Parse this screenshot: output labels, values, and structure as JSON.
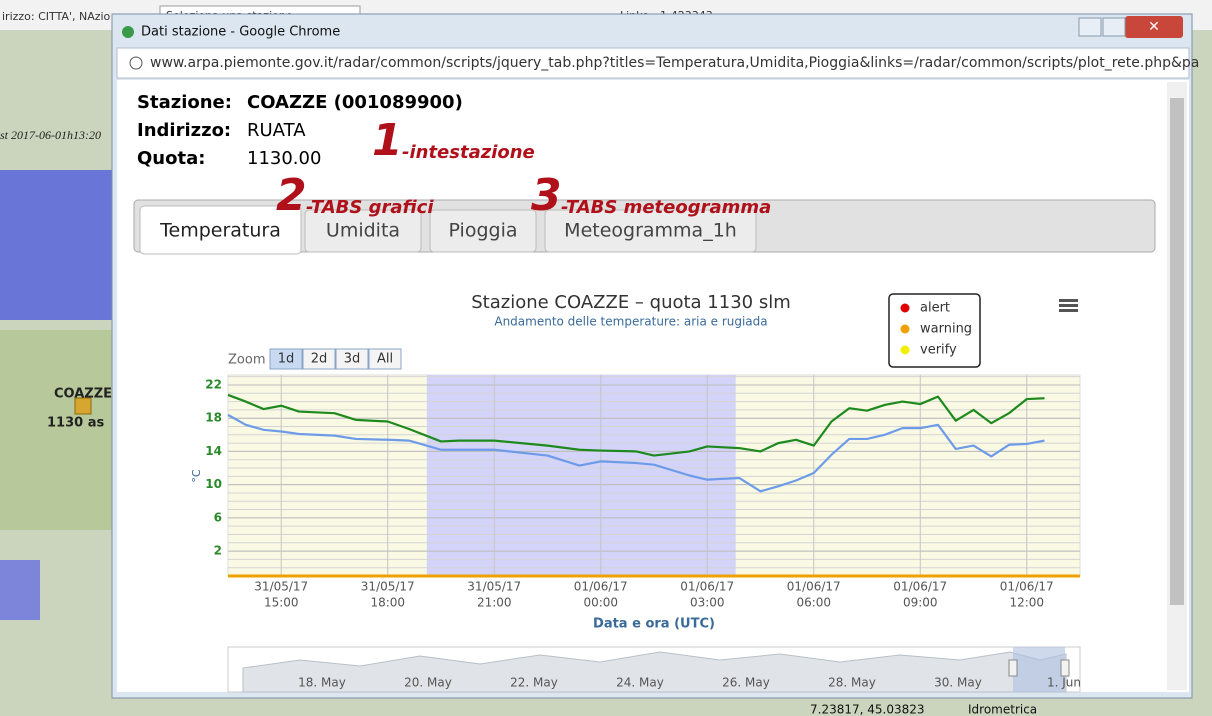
{
  "background": {
    "search_label": "irizzo: CITTA', NAzio",
    "station_select": "Seleziona una stazione",
    "links": "Links",
    "scale": "1:423343",
    "timestamp": "st 2017-06-01h13:20",
    "map_station": "COAZZE",
    "map_altitude": "1130 as",
    "coords": "7.23817, 45.03823",
    "legend_item": "Idrometrica"
  },
  "window": {
    "title": "Dati stazione - Google Chrome",
    "url": "www.arpa.piemonte.gov.it/radar/common/scripts/jquery_tab.php?titles=Temperatura,Umidita,Pioggia&links=/radar/common/scripts/plot_rete.php&pa"
  },
  "header": {
    "station_label": "Stazione:",
    "station": "COAZZE (001089900)",
    "address_label": "Indirizzo:",
    "address": "RUATA",
    "altitude_label": "Quota:",
    "altitude": "1130.00"
  },
  "annotations": [
    {
      "number": "1",
      "text": "-intestazione"
    },
    {
      "number": "2",
      "text": "-TABS grafici"
    },
    {
      "number": "3",
      "text": "-TABS meteogramma"
    }
  ],
  "tabs": {
    "items": [
      "Temperatura",
      "Umidita",
      "Pioggia",
      "Meteogramma_1h"
    ],
    "active": 0
  },
  "chart_data": {
    "type": "line",
    "title": "Stazione COAZZE – quota 1130 slm",
    "subtitle": "Andamento delle temperature: aria e rugiada",
    "y_label": "°C",
    "x_label": "Data e ora (UTC)",
    "zoom": {
      "label": "Zoom",
      "buttons": [
        "1d",
        "2d",
        "3d",
        "All"
      ],
      "active": 0
    },
    "legend": {
      "position": "top-right",
      "items": [
        {
          "name": "alert",
          "color": "#e00000"
        },
        {
          "name": "warning",
          "color": "#f0a000"
        },
        {
          "name": "verify",
          "color": "#f0f000"
        }
      ]
    },
    "x": [
      13.5,
      14,
      14.5,
      15,
      15.5,
      16.5,
      17.1,
      18,
      18.6,
      19.5,
      20,
      21,
      22.5,
      23.4,
      24,
      25,
      25.5,
      26.5,
      27,
      27.9,
      28.5,
      29,
      29.5,
      30,
      30.5,
      31,
      31.5,
      32,
      32.5,
      33,
      33.5,
      34,
      34.5,
      35,
      35.5,
      36,
      36.5
    ],
    "series": [
      {
        "color": "#1e8a1e",
        "values": [
          20.8,
          20.0,
          19.1,
          19.5,
          18.8,
          18.6,
          17.8,
          17.6,
          16.7,
          15.2,
          15.3,
          15.3,
          14.7,
          14.2,
          14.1,
          14.0,
          13.5,
          14.0,
          14.6,
          14.4,
          14.0,
          15.0,
          15.4,
          14.7,
          17.6,
          19.2,
          18.9,
          19.6,
          20.0,
          19.7,
          20.6,
          17.7,
          19.0,
          17.4,
          18.6,
          20.3,
          20.4
        ]
      },
      {
        "color": "#6d9be8",
        "values": [
          18.4,
          17.2,
          16.6,
          16.4,
          16.1,
          15.9,
          15.5,
          15.4,
          15.3,
          14.2,
          14.2,
          14.2,
          13.5,
          12.3,
          12.8,
          12.6,
          12.4,
          11.1,
          10.6,
          10.8,
          9.2,
          9.8,
          10.5,
          11.4,
          13.6,
          15.5,
          15.5,
          16.0,
          16.8,
          16.8,
          17.2,
          14.3,
          14.7,
          13.4,
          14.8,
          14.9,
          15.3
        ]
      }
    ],
    "xlim": [
      13.5,
      37.5
    ],
    "xticks": [
      {
        "value": 15,
        "date": "31/05/17",
        "label": "15:00"
      },
      {
        "value": 18,
        "date": "31/05/17",
        "label": "18:00"
      },
      {
        "value": 21,
        "date": "31/05/17",
        "label": "21:00"
      },
      {
        "value": 24,
        "date": "01/06/17",
        "label": "00:00"
      },
      {
        "value": 27,
        "date": "01/06/17",
        "label": "03:00"
      },
      {
        "value": 30,
        "date": "01/06/17",
        "label": "06:00"
      },
      {
        "value": 33,
        "date": "01/06/17",
        "label": "09:00"
      },
      {
        "value": 36,
        "date": "01/06/17",
        "label": "12:00"
      }
    ],
    "ylim": [
      -1,
      23.2
    ],
    "yticks": [
      2,
      6,
      10,
      14,
      18,
      22
    ],
    "grid": true,
    "plot_bands": [
      {
        "from": 19.1,
        "to": 27.8,
        "color": "#ccccff"
      }
    ],
    "navigator": {
      "labels": [
        "18. May",
        "20. May",
        "22. May",
        "24. May",
        "26. May",
        "28. May",
        "30. May",
        "1. Jun"
      ]
    }
  }
}
